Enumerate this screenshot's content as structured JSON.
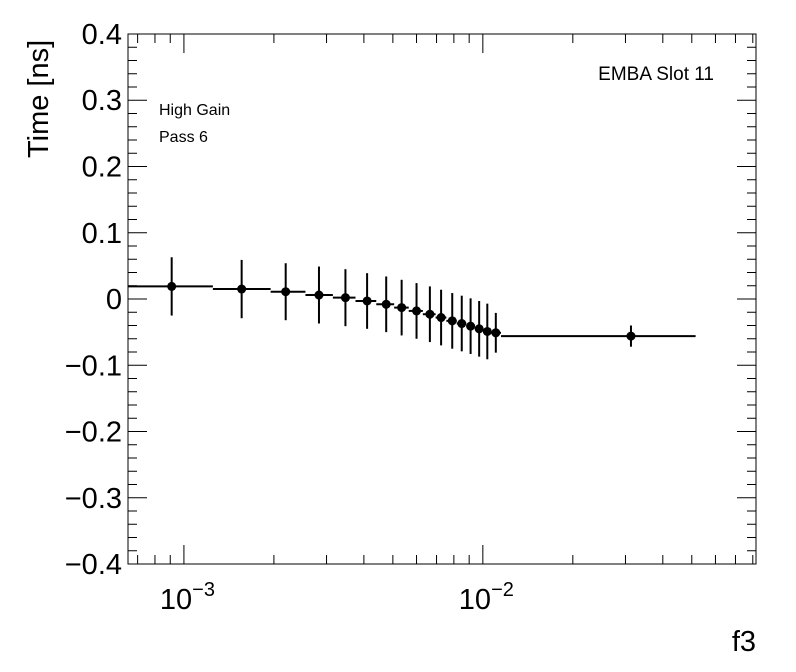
{
  "chart_data": {
    "type": "scatter",
    "title": "",
    "xlabel": "f3",
    "ylabel": "Time [ns]",
    "x_scale": "log",
    "xlim": [
      0.00065,
      0.082
    ],
    "ylim": [
      -0.4,
      0.4
    ],
    "grid": false,
    "annotations": [
      "EMBA Slot 11",
      "High Gain",
      "Pass 6"
    ],
    "y_tick_labels": [
      "0.4",
      "0.3",
      "0.2",
      "0.1",
      "0",
      "−0.1",
      "−0.2",
      "−0.3",
      "−0.4"
    ],
    "x_tick_labels": [
      {
        "base": "10",
        "exp": "−3"
      },
      {
        "base": "10",
        "exp": "−2"
      }
    ],
    "points": [
      {
        "x": 0.00091,
        "x_lo": 0.00065,
        "x_hi": 0.00125,
        "y": 0.019,
        "err": 0.044
      },
      {
        "x": 0.00156,
        "x_lo": 0.00125,
        "x_hi": 0.00195,
        "y": 0.015,
        "err": 0.044
      },
      {
        "x": 0.00219,
        "x_lo": 0.00195,
        "x_hi": 0.00255,
        "y": 0.011,
        "err": 0.043
      },
      {
        "x": 0.00283,
        "x_lo": 0.00255,
        "x_hi": 0.00315,
        "y": 0.006,
        "err": 0.043
      },
      {
        "x": 0.00347,
        "x_lo": 0.00315,
        "x_hi": 0.00375,
        "y": 0.002,
        "err": 0.043
      },
      {
        "x": 0.0041,
        "x_lo": 0.00375,
        "x_hi": 0.0044,
        "y": -0.003,
        "err": 0.042
      },
      {
        "x": 0.00475,
        "x_lo": 0.0044,
        "x_hi": 0.00505,
        "y": -0.008,
        "err": 0.042
      },
      {
        "x": 0.00535,
        "x_lo": 0.00505,
        "x_hi": 0.00565,
        "y": -0.013,
        "err": 0.042
      },
      {
        "x": 0.006,
        "x_lo": 0.00565,
        "x_hi": 0.0063,
        "y": -0.018,
        "err": 0.042
      },
      {
        "x": 0.00665,
        "x_lo": 0.0063,
        "x_hi": 0.00695,
        "y": -0.023,
        "err": 0.042
      },
      {
        "x": 0.00725,
        "x_lo": 0.00695,
        "x_hi": 0.00755,
        "y": -0.028,
        "err": 0.042
      },
      {
        "x": 0.0079,
        "x_lo": 0.00755,
        "x_hi": 0.00818,
        "y": -0.033,
        "err": 0.042
      },
      {
        "x": 0.0085,
        "x_lo": 0.00818,
        "x_hi": 0.0088,
        "y": -0.037,
        "err": 0.042
      },
      {
        "x": 0.0091,
        "x_lo": 0.0088,
        "x_hi": 0.0094,
        "y": -0.041,
        "err": 0.042
      },
      {
        "x": 0.00972,
        "x_lo": 0.0094,
        "x_hi": 0.01005,
        "y": -0.045,
        "err": 0.042
      },
      {
        "x": 0.01035,
        "x_lo": 0.01005,
        "x_hi": 0.01065,
        "y": -0.049,
        "err": 0.042
      },
      {
        "x": 0.01105,
        "x_lo": 0.01065,
        "x_hi": 0.0115,
        "y": -0.051,
        "err": 0.03
      },
      {
        "x": 0.0313,
        "x_lo": 0.0115,
        "x_hi": 0.0515,
        "y": -0.056,
        "err": 0.016
      }
    ],
    "colors": {
      "axis": "#000000",
      "marker": "#000000"
    }
  }
}
